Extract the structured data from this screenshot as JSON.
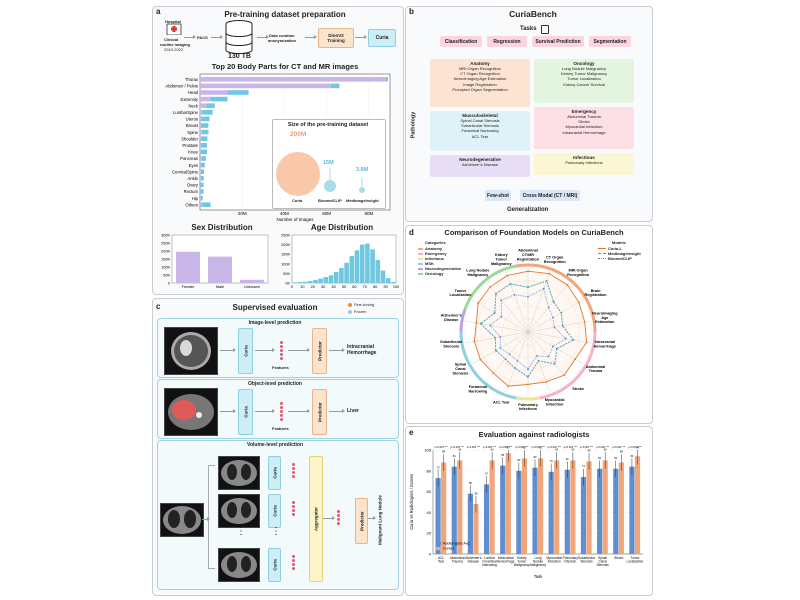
{
  "panel_a": {
    "label": "a",
    "title": "Pre-training dataset preparation",
    "hospital_label": "Hospital",
    "clinical_line1": "Clinical",
    "clinical_line2": "routine imaging",
    "clinical_years": "2019-2022",
    "pacs": "PACS",
    "storage": "130 TB",
    "curation_line1": "Data curation",
    "curation_line2": "anonymization",
    "training_line1": "DinoV2",
    "training_line2": "Training",
    "model": "Curia",
    "chart_title": "Top 20 Body Parts for CT and MR images"
  },
  "inset": {
    "title": "Size of the pre-training dataset",
    "curia_value": "200M",
    "curia_label": "Curia",
    "biomed_value": "15M",
    "biomed_label": "BiomedCLIP",
    "med_value": "3.8M",
    "med_label": "MedImageInsight"
  },
  "sex_title": "Sex Distribution",
  "age_title": "Age Distribution",
  "panel_b": {
    "label": "b",
    "title": "CuriaBench",
    "tasks_title": "Tasks",
    "tasks": [
      "Classification",
      "Regression",
      "Survival Prediction",
      "Segmentation"
    ],
    "pathology": "Pathology",
    "anatomy_title": "Anatomy",
    "anatomy_items": [
      "MRI Organ Recognition",
      "CT Organ Recognition",
      "Neuroimaging Age Estimation",
      "Image Registration",
      "Prompted Organ Segmentation"
    ],
    "musculo_title": "Musculoskeletal",
    "musculo_items": [
      "Spinal Canal Stenosis",
      "Subarticular Stenosis",
      "Foraminal Narrowing",
      "ACL Tear"
    ],
    "neuro_title": "Neurodegenerative",
    "neuro_items": [
      "Alzheimer's Disease"
    ],
    "oncology_title": "Oncology",
    "oncology_items": [
      "Lung Nodule Malignancy",
      "Kidney Tumor Malignancy",
      "Tumor Localization",
      "Kidney Cancer Survival"
    ],
    "emergency_title": "Emergency",
    "emergency_items": [
      "Abdominal Trauma",
      "Stroke",
      "Myocardial Infarction",
      "Intracranial Hemorrhage"
    ],
    "infectious_title": "Infectious",
    "infectious_items": [
      "Pulmonary Infections"
    ],
    "fewshot": "Few-shot",
    "crossmodal": "Cross Modal (CT / MRI)",
    "generalization": "Generalization"
  },
  "panel_c": {
    "label": "c",
    "title": "Supervised evaluation",
    "legend_fine": "Fine-tuning",
    "legend_frozen": "Frozen",
    "image_level": "Image-level prediction",
    "object_level": "Object-level prediction",
    "volume_level": "Volume-level prediction",
    "curia": "Curia",
    "features": "Features",
    "predictor": "Predictor",
    "aggregator": "Aggregator",
    "out_image_1": "Intracranial",
    "out_image_2": "Hemorrhage",
    "out_object": "Liver",
    "out_volume": "Malignant Lung Nodule"
  },
  "panel_d": {
    "label": "d",
    "title": "Comparison of Foundation Models on CuriaBench",
    "categories_title": "Categories",
    "categories": [
      {
        "name": "Anatomy",
        "color": "#f0a57a"
      },
      {
        "name": "Emergency",
        "color": "#f4b3c2"
      },
      {
        "name": "Infectious",
        "color": "#f2e48a"
      },
      {
        "name": "MSK",
        "color": "#8fd0e0"
      },
      {
        "name": "Neurodegenerative",
        "color": "#b9a3e0"
      },
      {
        "name": "Oncology",
        "color": "#9bd89b"
      }
    ],
    "models_title": "Models",
    "models": [
      {
        "name": "Curia-L",
        "color": "#e8742a"
      },
      {
        "name": "MedImageInsight",
        "color": "#3a9fb0"
      },
      {
        "name": "BiomedCLIP",
        "color": "#5a8fd6"
      }
    ]
  },
  "panel_e": {
    "label": "e",
    "title": "Evaluation against radiologists",
    "legend_radiologists": "Radiologists Avg.",
    "legend_curia": "Curia-L",
    "sig_label": "p<0.001 ***"
  },
  "chart_data": [
    {
      "type": "bar",
      "title": "Top 20 Body Parts for CT and MR images",
      "orientation": "horizontal",
      "categories": [
        "Thorax",
        "Abdomen / Pelvis",
        "Head",
        "Extremity",
        "Neck",
        "LumbarSpine",
        "Uterus",
        "Breast",
        "Spine",
        "Shoulder",
        "Prostate",
        "Knee",
        "Pancreas",
        "Eyes",
        "CervicalSpine",
        "Ankle",
        "Ovary",
        "Rectum",
        "Hip",
        "Others"
      ],
      "series": [
        {
          "name": "CT",
          "color": "#c9b6e8",
          "values": [
            88,
            62,
            13,
            5,
            3,
            1,
            0.5,
            0.5,
            1,
            0.5,
            0.3,
            0.3,
            0.8,
            0.3,
            0.4,
            0.3,
            0.2,
            0.2,
            0.3,
            1
          ]
        },
        {
          "name": "MR",
          "color": "#6fc7e0",
          "values": [
            1,
            4,
            10,
            8,
            4,
            5,
            4,
            3.5,
            3,
            3,
            3,
            3,
            2,
            2,
            1.5,
            1.5,
            1.5,
            1.5,
            1,
            4
          ]
        }
      ],
      "legend_title": "Modality",
      "xlabel": "Number of Images",
      "xticks": [
        "20M",
        "40M",
        "60M",
        "80M"
      ],
      "xlim": [
        0,
        90
      ]
    },
    {
      "type": "bar",
      "title": "Sex Distribution",
      "categories": [
        "Female",
        "Male",
        "Unknown"
      ],
      "values": [
        195000,
        165000,
        20000
      ],
      "yticks": [
        "0",
        "50K",
        "100K",
        "150K",
        "200K",
        "250K",
        "300K"
      ],
      "ylim": [
        0,
        300000
      ],
      "color": "#c9b6e8"
    },
    {
      "type": "bar",
      "title": "Age Distribution",
      "categories": [
        "0-5",
        "5-10",
        "10-15",
        "15-20",
        "20-25",
        "25-30",
        "30-35",
        "35-40",
        "40-45",
        "45-50",
        "50-55",
        "55-60",
        "60-65",
        "65-70",
        "70-75",
        "75-80",
        "80-85",
        "85-90",
        "90-95",
        "95-100"
      ],
      "values": [
        3000,
        5000,
        7000,
        10000,
        16000,
        23000,
        31000,
        40000,
        58000,
        78000,
        105000,
        140000,
        170000,
        200000,
        205000,
        175000,
        120000,
        65000,
        25000,
        5000
      ],
      "xticks": [
        "0",
        "10",
        "20",
        "30",
        "40",
        "50",
        "60",
        "70",
        "80",
        "90",
        "100"
      ],
      "yticks": [
        "0K",
        "50K",
        "100K",
        "150K",
        "200K",
        "250K"
      ],
      "ylim": [
        0,
        250000
      ],
      "color": "#6fc7e0"
    },
    {
      "type": "radar",
      "title": "Comparison of Foundation Models on CuriaBench",
      "axes": [
        "Abdominal CT/MR Registration",
        "CT Organ Recognition",
        "MRI Organ Recognition",
        "Brain Registration",
        "Neuroimaging Age Estimation",
        "Intracranial Hemorrhage",
        "Abdominal Trauma",
        "Stroke",
        "Myocardial Infarction",
        "Pulmonary Infections",
        "ACL Tear",
        "Foraminal Narrowing",
        "Spinal Canal Stenosis",
        "Subarticular Stenosis",
        "Alzheimer's Disease",
        "Tumor Localization",
        "Lung Nodule Malignancy",
        "Kidney Tumor Malignancy"
      ],
      "series": [
        {
          "name": "Curia-L",
          "values": [
            0.95,
            0.97,
            0.96,
            0.92,
            0.9,
            0.93,
            0.85,
            0.88,
            0.83,
            0.82,
            0.9,
            0.84,
            0.86,
            0.85,
            0.82,
            0.9,
            0.92,
            0.94
          ]
        },
        {
          "name": "MedImageInsight",
          "values": [
            0.7,
            0.85,
            0.62,
            0.6,
            0.55,
            0.72,
            0.52,
            0.65,
            0.48,
            0.7,
            0.6,
            0.55,
            0.58,
            0.52,
            0.75,
            0.6,
            0.78,
            0.8
          ]
        },
        {
          "name": "BiomedCLIP",
          "values": [
            0.55,
            0.72,
            0.5,
            0.45,
            0.42,
            0.6,
            0.45,
            0.5,
            0.4,
            0.58,
            0.48,
            0.45,
            0.5,
            0.44,
            0.6,
            0.48,
            0.65,
            0.62
          ]
        }
      ],
      "rlim": [
        0,
        1
      ]
    },
    {
      "type": "bar",
      "title": "Evaluation against radiologists",
      "categories": [
        "ACL Tear",
        "Abdominal Trauma",
        "Alzheimer's Disease",
        "Lumbar Foraminal Narrowing",
        "Intracranial Hemorrhage",
        "Kidney Tumor Malignancy",
        "Lung Nodule Malignancy",
        "Myocardial Infarction",
        "Pulmonary Infection",
        "Subarticular Stenosis",
        "Spinal Canal Stenosis",
        "Stroke",
        "Tumor Localization"
      ],
      "series": [
        {
          "name": "Radiologists Avg.",
          "values": [
            73,
            84,
            58,
            67,
            85,
            80,
            83,
            79,
            81,
            74,
            82,
            82,
            84
          ],
          "color": "#5f8fcf"
        },
        {
          "name": "Curia-L",
          "values": [
            88,
            90,
            48,
            90,
            97,
            92,
            92,
            90,
            90,
            89,
            90,
            88,
            94
          ],
          "color": "#f0a57a"
        }
      ],
      "ylabel": "Curia vs Radiologists / Scores",
      "xlabel": "Task",
      "yticks": [
        "0",
        "20",
        "40",
        "60",
        "80",
        "100"
      ],
      "ylim": [
        0,
        100
      ]
    }
  ]
}
